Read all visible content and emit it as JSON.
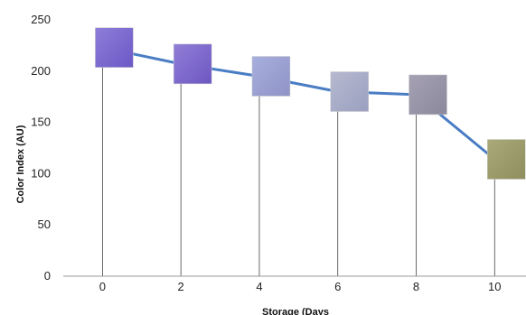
{
  "chart_data": {
    "type": "line",
    "title": "",
    "xlabel": "Storage (Days",
    "ylabel": "Color Index (AU)",
    "x": [
      0,
      2,
      4,
      6,
      8,
      10
    ],
    "xlim": [
      -1,
      10.8
    ],
    "ylim": [
      0,
      250
    ],
    "yticks": [
      0,
      50,
      100,
      150,
      200,
      250
    ],
    "xticks": [
      0,
      2,
      4,
      6,
      8,
      10
    ],
    "grid": false,
    "series": [
      {
        "name": "",
        "values": [
          223,
          207,
          195,
          180,
          177,
          114
        ],
        "color": "#4a7dc4"
      }
    ],
    "sample_images": [
      {
        "x": 0,
        "colors": [
          "#8e7ed8",
          "#6c58c6"
        ]
      },
      {
        "x": 2,
        "colors": [
          "#917ed6",
          "#6d57c2"
        ]
      },
      {
        "x": 4,
        "colors": [
          "#a8b0de",
          "#8f92c6"
        ]
      },
      {
        "x": 6,
        "colors": [
          "#b6b9cf",
          "#9aa0c0"
        ]
      },
      {
        "x": 8,
        "colors": [
          "#a6a2b4",
          "#8c889c"
        ]
      },
      {
        "x": 10,
        "colors": [
          "#aaa97a",
          "#8e8e5e"
        ]
      }
    ]
  }
}
